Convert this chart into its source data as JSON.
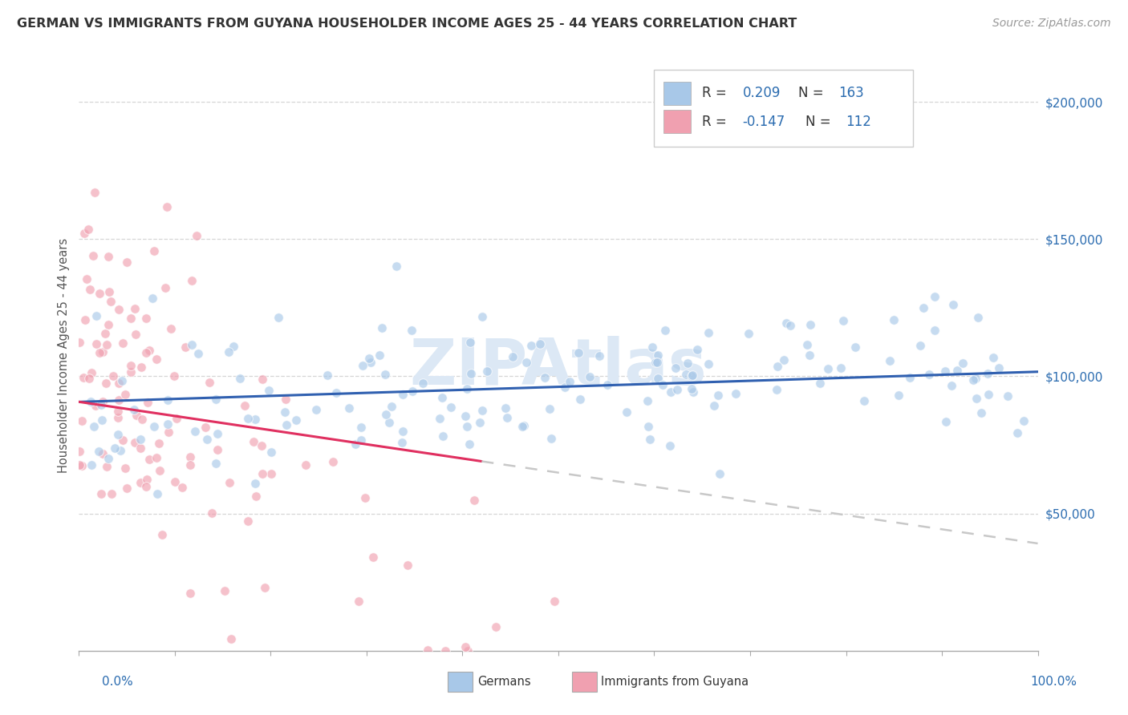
{
  "title": "GERMAN VS IMMIGRANTS FROM GUYANA HOUSEHOLDER INCOME AGES 25 - 44 YEARS CORRELATION CHART",
  "source": "Source: ZipAtlas.com",
  "ylabel": "Householder Income Ages 25 - 44 years",
  "watermark": "ZIPAtlas",
  "x_min": 0.0,
  "x_max": 1.0,
  "y_min": 0,
  "y_max": 215000,
  "y_ticks": [
    50000,
    100000,
    150000,
    200000
  ],
  "y_tick_labels": [
    "$50,000",
    "$100,000",
    "$150,000",
    "$200,000"
  ],
  "german_R": 0.209,
  "german_N": 163,
  "guyana_R": -0.147,
  "guyana_N": 112,
  "german_color": "#a8c8e8",
  "guyana_color": "#f0a0b0",
  "german_line_color": "#3060b0",
  "guyana_line_color": "#e03060",
  "guyana_dashed_color": "#c8c8c8",
  "title_color": "#333333",
  "axis_label_color": "#555555",
  "source_color": "#999999",
  "value_color": "#2b6cb0",
  "background_color": "#ffffff",
  "grid_color": "#cccccc",
  "watermark_color": "#dce8f5",
  "german_seed": 12,
  "guyana_seed": 77
}
